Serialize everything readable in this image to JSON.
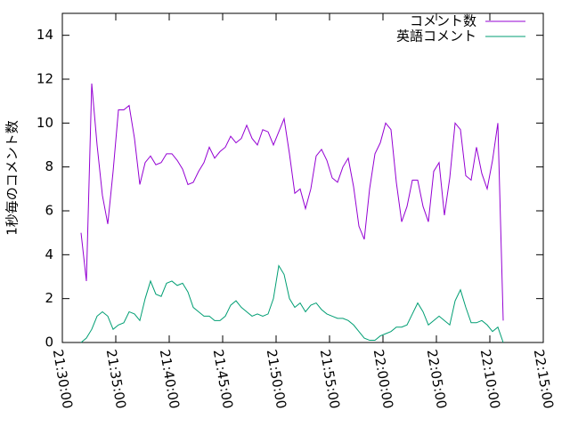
{
  "chart_data": {
    "type": "line",
    "y_label": "1秒毎のコメント数",
    "x": [
      "21:31:45",
      "21:32:15",
      "21:32:45",
      "21:33:15",
      "21:33:45",
      "21:34:15",
      "21:34:45",
      "21:35:15",
      "21:35:45",
      "21:36:15",
      "21:36:45",
      "21:37:15",
      "21:37:45",
      "21:38:15",
      "21:38:45",
      "21:39:15",
      "21:39:45",
      "21:40:15",
      "21:40:45",
      "21:41:15",
      "21:41:45",
      "21:42:15",
      "21:42:45",
      "21:43:15",
      "21:43:45",
      "21:44:15",
      "21:44:45",
      "21:45:15",
      "21:45:45",
      "21:46:15",
      "21:46:45",
      "21:47:15",
      "21:47:45",
      "21:48:15",
      "21:48:45",
      "21:49:15",
      "21:49:45",
      "21:50:15",
      "21:50:45",
      "21:51:15",
      "21:51:45",
      "21:52:15",
      "21:52:45",
      "21:53:15",
      "21:53:45",
      "21:54:15",
      "21:54:45",
      "21:55:15",
      "21:55:45",
      "21:56:15",
      "21:56:45",
      "21:57:15",
      "21:57:45",
      "21:58:15",
      "21:58:45",
      "21:59:15",
      "21:59:45",
      "22:00:15",
      "22:00:45",
      "22:01:15",
      "22:01:45",
      "22:02:15",
      "22:02:45",
      "22:03:15",
      "22:03:45",
      "22:04:15",
      "22:04:45",
      "22:05:15",
      "22:05:45",
      "22:06:15",
      "22:06:45",
      "22:07:15",
      "22:07:45",
      "22:08:15",
      "22:08:45",
      "22:09:15",
      "22:09:45",
      "22:10:15",
      "22:10:45",
      "22:11:15"
    ],
    "series": [
      {
        "name": "コメント数",
        "color": "#9400d3",
        "values": [
          5.0,
          2.8,
          11.8,
          9.0,
          6.7,
          5.4,
          7.8,
          10.6,
          10.6,
          10.8,
          9.3,
          7.2,
          8.2,
          8.5,
          8.1,
          8.2,
          8.6,
          8.6,
          8.3,
          7.9,
          7.2,
          7.3,
          7.8,
          8.2,
          8.9,
          8.4,
          8.7,
          8.9,
          9.4,
          9.1,
          9.3,
          9.9,
          9.3,
          9.0,
          9.7,
          9.6,
          9.0,
          9.6,
          10.2,
          8.6,
          6.8,
          7.0,
          6.1,
          7.0,
          8.5,
          8.8,
          8.3,
          7.5,
          7.3,
          8.0,
          8.4,
          7.1,
          5.3,
          4.7,
          7.0,
          8.6,
          9.1,
          10.0,
          9.7,
          7.3,
          5.5,
          6.2,
          7.4,
          7.4,
          6.2,
          5.5,
          7.8,
          8.2,
          5.8,
          7.5,
          10.0,
          9.7,
          7.6,
          7.4,
          8.9,
          7.7,
          7.0,
          8.3,
          10.0,
          1.0
        ]
      },
      {
        "name": "英語コメント",
        "color": "#009e73",
        "values": [
          0.0,
          0.2,
          0.6,
          1.2,
          1.4,
          1.2,
          0.6,
          0.8,
          0.9,
          1.4,
          1.3,
          1.0,
          2.0,
          2.8,
          2.2,
          2.1,
          2.7,
          2.8,
          2.6,
          2.7,
          2.3,
          1.6,
          1.4,
          1.2,
          1.2,
          1.0,
          1.0,
          1.2,
          1.7,
          1.9,
          1.6,
          1.4,
          1.2,
          1.3,
          1.2,
          1.3,
          2.0,
          3.5,
          3.1,
          2.0,
          1.6,
          1.8,
          1.4,
          1.7,
          1.8,
          1.5,
          1.3,
          1.2,
          1.1,
          1.1,
          1.0,
          0.8,
          0.5,
          0.2,
          0.1,
          0.1,
          0.3,
          0.4,
          0.5,
          0.7,
          0.7,
          0.8,
          1.3,
          1.8,
          1.4,
          0.8,
          1.0,
          1.2,
          1.0,
          0.8,
          1.9,
          2.4,
          1.6,
          0.9,
          0.9,
          1.0,
          0.8,
          0.5,
          0.7,
          0.0
        ]
      }
    ],
    "xlim": [
      "21:30:00",
      "22:15:00"
    ],
    "xticks": [
      "21:30:00",
      "21:35:00",
      "21:40:00",
      "21:45:00",
      "21:50:00",
      "21:55:00",
      "22:00:00",
      "22:05:00",
      "22:10:00",
      "22:15:00"
    ],
    "ylim": [
      0,
      15
    ],
    "yticks": [
      0,
      2,
      4,
      6,
      8,
      10,
      12,
      14
    ],
    "legend": "top right"
  }
}
